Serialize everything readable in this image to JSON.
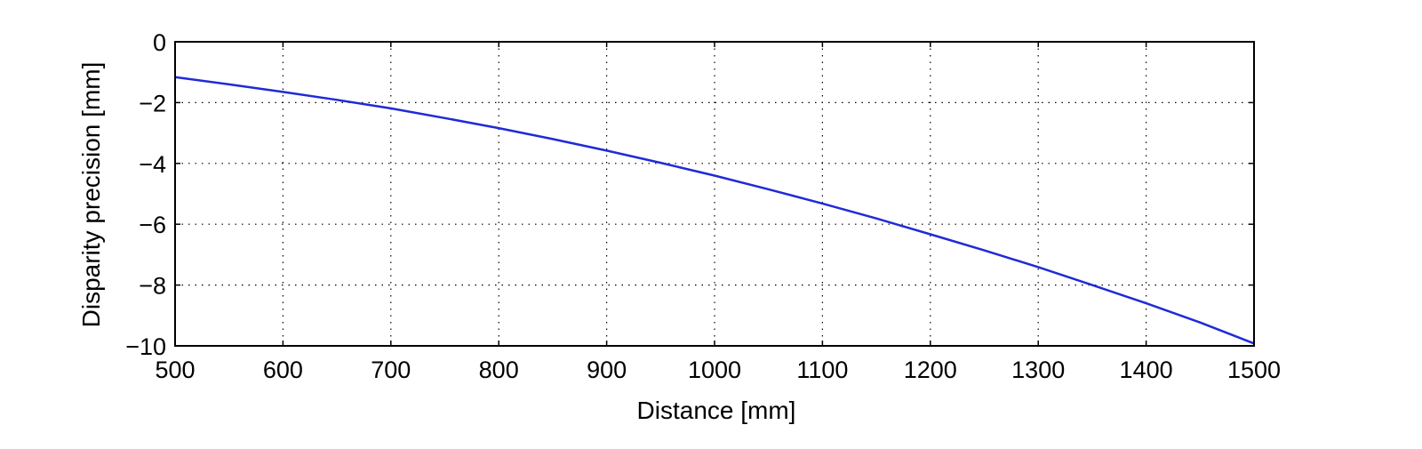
{
  "chart_data": {
    "type": "line",
    "title": "",
    "xlabel": "Distance [mm]",
    "ylabel": "Disparity precision [mm]",
    "xlim": [
      500,
      1500
    ],
    "ylim": [
      -10,
      0
    ],
    "xticks": [
      500,
      600,
      700,
      800,
      900,
      1000,
      1100,
      1200,
      1300,
      1400,
      1500
    ],
    "yticks": [
      0,
      -2,
      -4,
      -6,
      -8,
      -10
    ],
    "xtick_labels": [
      "500",
      "600",
      "700",
      "800",
      "900",
      "1000",
      "1100",
      "1200",
      "1300",
      "1400",
      "1500"
    ],
    "ytick_labels": [
      "0",
      "−2",
      "−4",
      "−6",
      "−8",
      "−10"
    ],
    "grid": true,
    "grid_style": "dotted",
    "legend": "none",
    "series": [
      {
        "color": "#1f2bd6",
        "x": [
          500,
          550,
          600,
          650,
          700,
          750,
          800,
          850,
          900,
          950,
          1000,
          1050,
          1100,
          1150,
          1200,
          1250,
          1300,
          1350,
          1400,
          1450,
          1500
        ],
        "y": [
          -1.16,
          -1.4,
          -1.65,
          -1.91,
          -2.19,
          -2.51,
          -2.84,
          -3.2,
          -3.58,
          -3.98,
          -4.4,
          -4.85,
          -5.32,
          -5.81,
          -6.33,
          -6.86,
          -7.41,
          -8.0,
          -8.6,
          -9.23,
          -9.92
        ]
      }
    ]
  }
}
